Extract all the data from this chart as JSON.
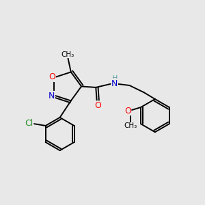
{
  "background_color": "#e8e8e8",
  "bond_color": "#000000",
  "atom_colors": {
    "O": "#ff0000",
    "N": "#0000cd",
    "Cl": "#228b22",
    "C": "#000000",
    "H": "#5f9ea0"
  },
  "figsize": [
    3.0,
    3.0
  ],
  "dpi": 100
}
